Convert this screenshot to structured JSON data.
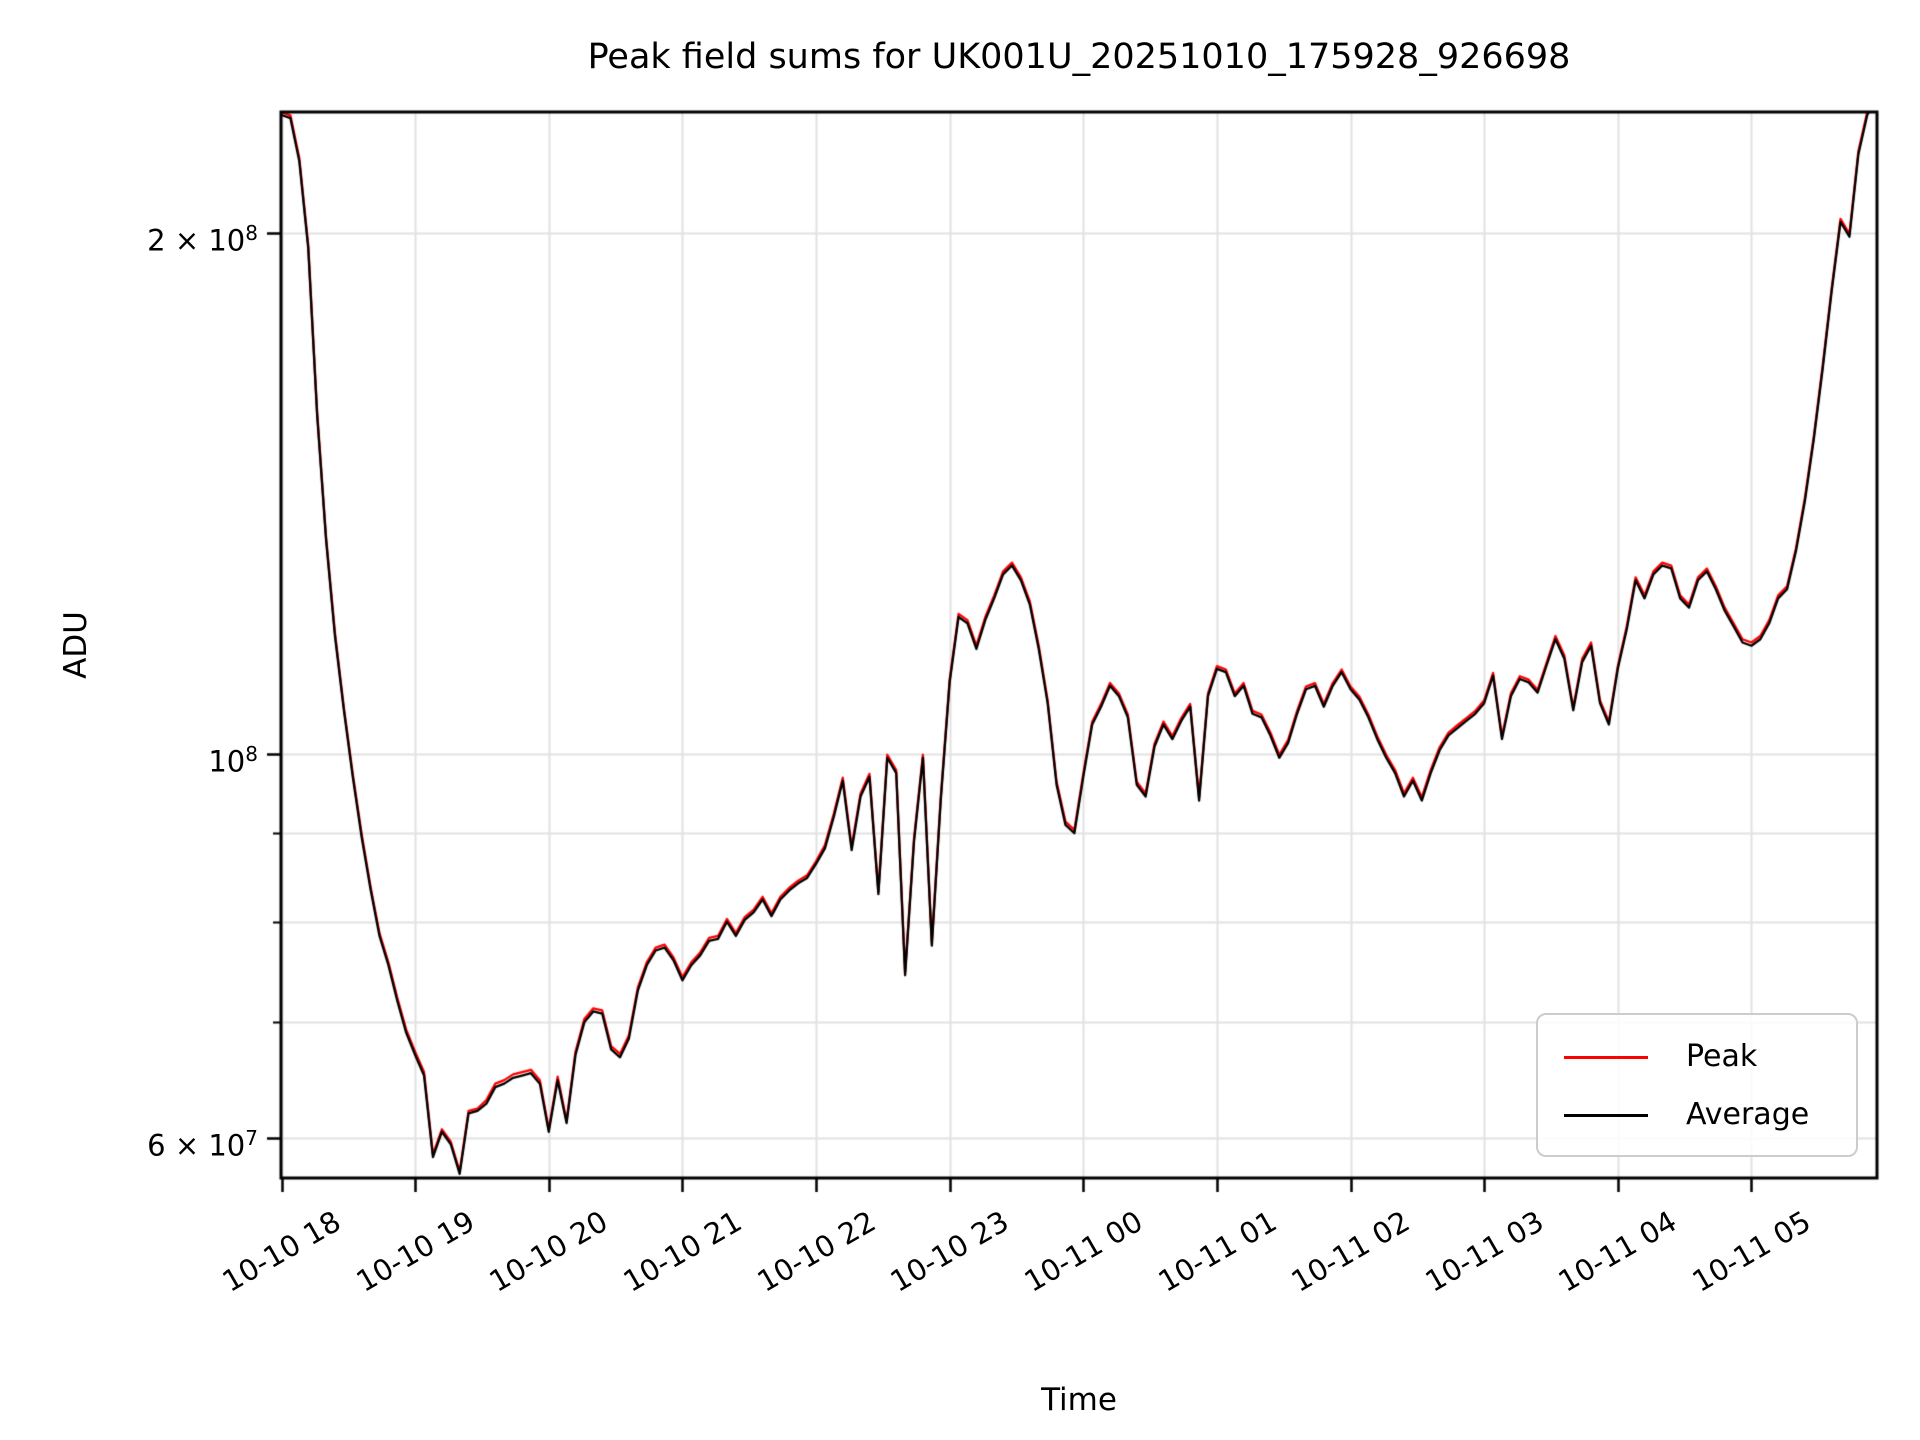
{
  "figure": {
    "title": "Peak field sums for UK001U_20251010_175928_926698",
    "xlabel": "Time",
    "ylabel": "ADU"
  },
  "legend": {
    "items": [
      {
        "label": "Peak",
        "color": "#ff0000"
      },
      {
        "label": "Average",
        "color": "#000000"
      }
    ]
  },
  "colors": {
    "peak_line": "#ff0000",
    "average_line": "#000000",
    "grid": "#e2e2e2",
    "spine": "#000000",
    "background": "#ffffff"
  },
  "chart_data": {
    "type": "line",
    "title": "Peak field sums for UK001U_20251010_175928_926698",
    "xlabel": "Time",
    "ylabel": "ADU",
    "grid": true,
    "legend_position": "lower right",
    "x_axis": {
      "tick_labels": [
        "10-10 18",
        "10-10 19",
        "10-10 20",
        "10-10 21",
        "10-10 22",
        "10-10 23",
        "10-11 00",
        "10-11 01",
        "10-11 02",
        "10-11 03",
        "10-11 04",
        "10-11 05"
      ],
      "tick_rotation_deg": 30,
      "start": "10-10 18:00",
      "end": "10-11 05:57"
    },
    "y_axis": {
      "scale": "log",
      "range": [
        57000000,
        235000000
      ],
      "labeled_ticks": [
        {
          "value": 200000000,
          "text": "2 × 10",
          "sup": "8"
        },
        {
          "value": 100000000,
          "text": "10",
          "sup": "8"
        },
        {
          "value": 60000000,
          "text": "6 × 10",
          "sup": "7"
        }
      ],
      "minor_ticks": [
        90000000,
        80000000,
        70000000
      ],
      "gridline_values": [
        200000000,
        100000000,
        90000000,
        80000000,
        70000000,
        60000000
      ]
    },
    "x_minutes_start": 0,
    "x_minutes_step": 4,
    "value_scale": 1000000,
    "series": [
      {
        "name": "Peak",
        "color": "#ff0000",
        "values": [
          234.9,
          233.9,
          220.9,
          196.8,
          157.6,
          133.5,
          117.5,
          106.4,
          97.4,
          89.9,
          83.8,
          78.8,
          75.8,
          72.3,
          69.3,
          67.3,
          65.5,
          58.7,
          60.7,
          59.7,
          57.4,
          62.2,
          62.4,
          63.1,
          64.5,
          64.8,
          65.3,
          65.5,
          65.7,
          64.8,
          60.7,
          65.1,
          61.4,
          67.3,
          70.3,
          71.3,
          71.1,
          67.8,
          67.1,
          68.8,
          73.3,
          75.8,
          77.3,
          77.6,
          76.3,
          74.3,
          75.8,
          76.8,
          78.3,
          78.5,
          80.3,
          78.8,
          80.5,
          81.3,
          82.7,
          80.9,
          82.7,
          83.7,
          84.5,
          85.1,
          86.7,
          88.6,
          92.4,
          96.9,
          88.4,
          94.9,
          97.4,
          83.3,
          99.9,
          97.9,
          74.8,
          89.4,
          99.9,
          77.8,
          94.4,
          110.4,
          120.5,
          119.5,
          115.5,
          120.0,
          123.5,
          127.5,
          129.0,
          126.5,
          122.5,
          115.5,
          107.4,
          96.4,
          91.4,
          90.4,
          97.4,
          104.4,
          106.9,
          109.9,
          108.4,
          105.4,
          96.4,
          94.9,
          101.4,
          104.4,
          102.4,
          104.9,
          106.9,
          94.4,
          108.4,
          112.4,
          111.9,
          108.4,
          109.9,
          105.9,
          105.4,
          102.9,
          99.9,
          101.9,
          105.9,
          109.4,
          109.9,
          106.9,
          109.9,
          111.9,
          109.4,
          107.9,
          105.4,
          102.4,
          99.9,
          97.9,
          94.9,
          96.9,
          94.4,
          97.9,
          100.9,
          102.9,
          103.9,
          104.9,
          105.9,
          107.4,
          111.4,
          102.4,
          108.4,
          110.9,
          110.4,
          108.9,
          112.9,
          117.0,
          114.0,
          106.4,
          113.5,
          116.0,
          107.4,
          104.4,
          112.4,
          118.5,
          126.5,
          123.5,
          127.5,
          129.0,
          128.5,
          123.5,
          122.0,
          126.5,
          128.0,
          125.0,
          121.5,
          119.0,
          116.5,
          116.0,
          117.0,
          119.5,
          123.5,
          125.0,
          131.5,
          140.6,
          152.6,
          167.7,
          185.7,
          203.8,
          199.8,
          222.9,
          234.9,
          240.0
        ]
      },
      {
        "name": "Average",
        "color": "#000000",
        "values": [
          234,
          233,
          220,
          196,
          157,
          133,
          117,
          106,
          97,
          89.5,
          83.5,
          78.5,
          75.5,
          72,
          69,
          67,
          65.2,
          58.5,
          60.5,
          59.5,
          57.2,
          62,
          62.2,
          62.8,
          64.2,
          64.5,
          65,
          65.2,
          65.4,
          64.5,
          60.5,
          64.8,
          61.2,
          67,
          70,
          71,
          70.8,
          67.5,
          66.8,
          68.5,
          73,
          75.5,
          77,
          77.3,
          76,
          74,
          75.5,
          76.5,
          78,
          78.2,
          80,
          78.5,
          80.2,
          81,
          82.4,
          80.6,
          82.4,
          83.4,
          84.2,
          84.8,
          86.4,
          88.2,
          92,
          96.5,
          88,
          94.5,
          97,
          83,
          99.5,
          97.5,
          74.5,
          89,
          99.5,
          77.5,
          94,
          110,
          120,
          119,
          115,
          119.5,
          123,
          127,
          128.5,
          126,
          122,
          115,
          107,
          96,
          91,
          90,
          97,
          104,
          106.5,
          109.5,
          108,
          105,
          96,
          94.5,
          101,
          104,
          102,
          104.5,
          106.5,
          94,
          108,
          112,
          111.5,
          108,
          109.5,
          105.5,
          105,
          102.5,
          99.5,
          101.5,
          105.5,
          109,
          109.5,
          106.5,
          109.5,
          111.5,
          109,
          107.5,
          105,
          102,
          99.5,
          97.5,
          94.5,
          96.5,
          94,
          97.5,
          100.5,
          102.5,
          103.5,
          104.5,
          105.5,
          107,
          111,
          102,
          108,
          110.5,
          110,
          108.5,
          112.5,
          116.5,
          113.5,
          106,
          113,
          115.5,
          107,
          104,
          112,
          118,
          126,
          123,
          127,
          128.5,
          128,
          123,
          121.5,
          126,
          127.5,
          124.5,
          121,
          118.5,
          116,
          115.5,
          116.5,
          119,
          123,
          124.5,
          131,
          140,
          152,
          167,
          185,
          203,
          199,
          222,
          234,
          239
        ]
      }
    ]
  }
}
